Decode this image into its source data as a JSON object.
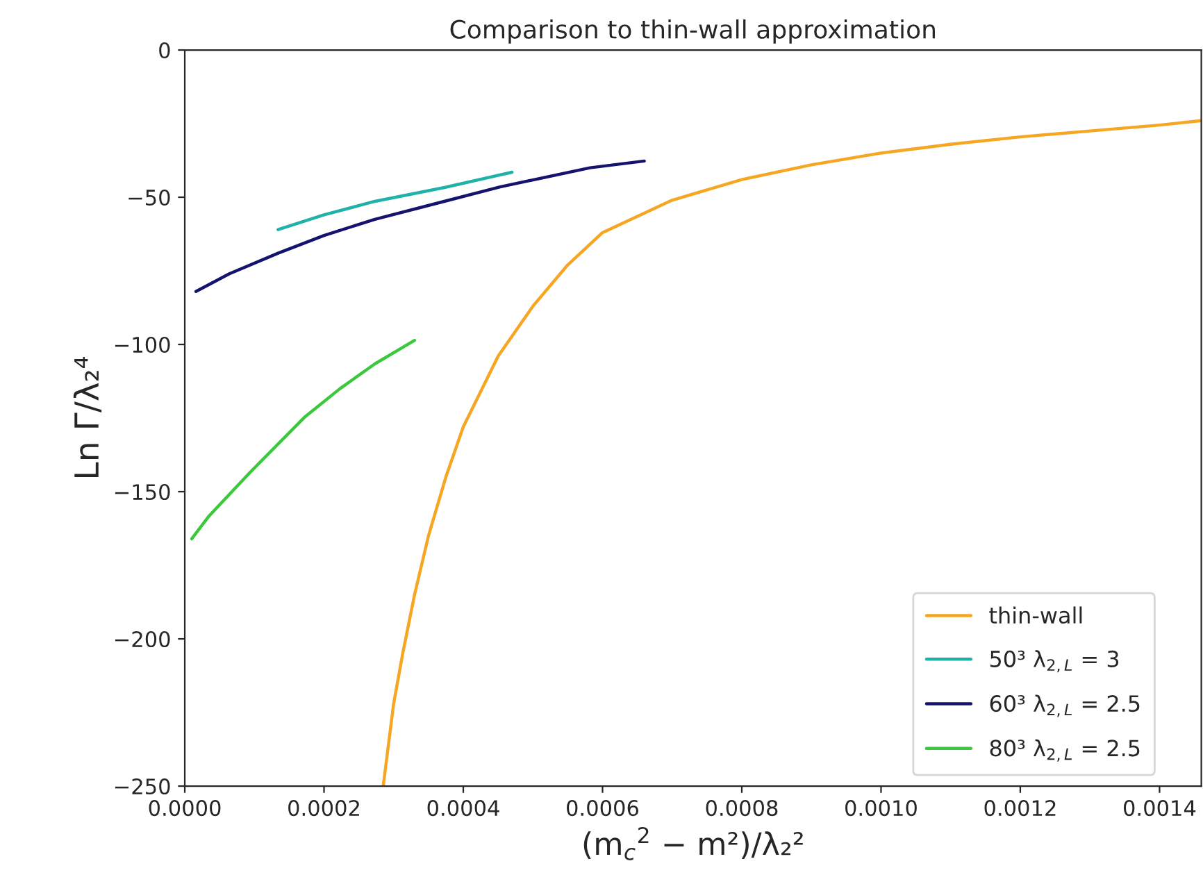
{
  "chart_data": {
    "type": "line",
    "title": "Comparison to thin-wall approximation",
    "xlabel": "(m$_{c}$$^{2}$ − m²)/λ₂²",
    "ylabel": "Ln Γ/λ₂⁴",
    "xlim": [
      0,
      0.00146
    ],
    "ylim": [
      -250,
      0
    ],
    "xticks": [
      {
        "value": 0,
        "label": "0.0000"
      },
      {
        "value": 0.0002,
        "label": "0.0002"
      },
      {
        "value": 0.0004,
        "label": "0.0004"
      },
      {
        "value": 0.0006,
        "label": "0.0006"
      },
      {
        "value": 0.0008,
        "label": "0.0008"
      },
      {
        "value": 0.001,
        "label": "0.0010"
      },
      {
        "value": 0.0012,
        "label": "0.0012"
      },
      {
        "value": 0.0014,
        "label": "0.0014"
      }
    ],
    "yticks": [
      {
        "value": -250,
        "label": "−250"
      },
      {
        "value": -200,
        "label": "−200"
      },
      {
        "value": -150,
        "label": "−150"
      },
      {
        "value": -100,
        "label": "−100"
      },
      {
        "value": -50,
        "label": "−50"
      },
      0
    ],
    "legend": "bottom right",
    "grid": false,
    "series": [
      {
        "name": "thin-wall",
        "color": "#f5a623",
        "x": [
          0.000285,
          0.0003,
          0.000313,
          0.00033,
          0.00035,
          0.000375,
          0.0004,
          0.00045,
          0.0005,
          0.00055,
          0.0006,
          0.0007,
          0.0008,
          0.0009,
          0.001,
          0.0011,
          0.0012,
          0.0013,
          0.0014,
          0.00146
        ],
        "values": [
          -250,
          -222,
          -205,
          -185,
          -165,
          -145,
          -128,
          -104,
          -87,
          -73,
          -62,
          -51,
          -44,
          -39,
          -35,
          -32,
          -29.5,
          -27.5,
          -25.5,
          -24
        ]
      },
      {
        "name": "50³ λ$_{2,L}$ = 3",
        "color": "#20b2aa",
        "x": [
          0.000134,
          0.0002,
          0.000273,
          0.000373,
          0.00047
        ],
        "values": [
          -61,
          -56,
          -51.4,
          -46.7,
          -41.5
        ]
      },
      {
        "name": "60³ λ$_{2,L}$ = 2.5",
        "color": "#14146e",
        "x": [
          1.6e-05,
          6.4e-05,
          0.000134,
          0.0002,
          0.000273,
          0.000363,
          0.000453,
          0.000582,
          0.00066
        ],
        "values": [
          -82,
          -76,
          -69,
          -63,
          -57.5,
          -52,
          -46.5,
          -40,
          -37.7
        ]
      },
      {
        "name": "80³ λ$_{2,L}$ = 2.5",
        "color": "#3cc83c",
        "x": [
          1e-05,
          3.4e-05,
          9.4e-05,
          0.000173,
          0.000223,
          0.000273,
          0.00033
        ],
        "values": [
          -166,
          -158.5,
          -143.4,
          -124.5,
          -115,
          -106.6,
          -98.6
        ]
      }
    ]
  }
}
